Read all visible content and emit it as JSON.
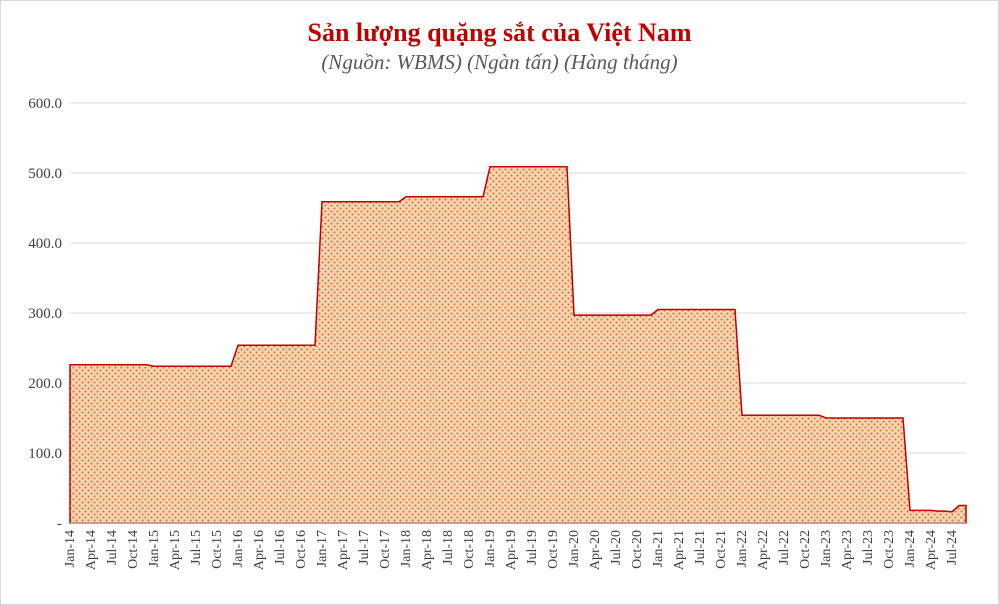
{
  "chart_data": {
    "type": "area",
    "title": "Sản lượng quặng sắt của Việt Nam",
    "subtitle": "(Nguồn: WBMS) (Ngàn tấn) (Hàng tháng)",
    "xlabel": "",
    "ylabel": "",
    "ylim": [
      0,
      600
    ],
    "yticks": [
      "-",
      "100.0",
      "200.0",
      "300.0",
      "400.0",
      "500.0",
      "600.0"
    ],
    "grid": true,
    "legend": "none",
    "colors": {
      "line": "#c00000",
      "fill": "#f6d7b8",
      "dots": "#e07a2f",
      "grid": "#d9d9d9",
      "title": "#c00000"
    },
    "x_labels": [
      "Jan-14",
      "Apr-14",
      "Jul-14",
      "Oct-14",
      "Jan-15",
      "Apr-15",
      "Jul-15",
      "Oct-15",
      "Jan-16",
      "Apr-16",
      "Jul-16",
      "Oct-16",
      "Jan-17",
      "Apr-17",
      "Jul-17",
      "Oct-17",
      "Jan-18",
      "Apr-18",
      "Jul-18",
      "Oct-18",
      "Jan-19",
      "Apr-19",
      "Jul-19",
      "Oct-19",
      "Jan-20",
      "Apr-20",
      "Jul-20",
      "Oct-20",
      "Jan-21",
      "Apr-21",
      "Jul-21",
      "Oct-21",
      "Jan-22",
      "Apr-22",
      "Jul-22",
      "Oct-22",
      "Jan-23",
      "Apr-23",
      "Jul-23",
      "Oct-23",
      "Jan-24",
      "Apr-24",
      "Jul-24"
    ],
    "series": [
      {
        "values": [
          226,
          226,
          226,
          226,
          226,
          226,
          226,
          226,
          226,
          226,
          226,
          226,
          224,
          224,
          224,
          224,
          224,
          224,
          224,
          224,
          224,
          224,
          224,
          224,
          254,
          254,
          254,
          254,
          254,
          254,
          254,
          254,
          254,
          254,
          254,
          254,
          459,
          459,
          459,
          459,
          459,
          459,
          459,
          459,
          459,
          459,
          459,
          459,
          466,
          466,
          466,
          466,
          466,
          466,
          466,
          466,
          466,
          466,
          466,
          466,
          509,
          509,
          509,
          509,
          509,
          509,
          509,
          509,
          509,
          509,
          509,
          509,
          297,
          297,
          297,
          297,
          297,
          297,
          297,
          297,
          297,
          297,
          297,
          297,
          305,
          305,
          305,
          305,
          305,
          305,
          305,
          305,
          305,
          305,
          305,
          305,
          154,
          154,
          154,
          154,
          154,
          154,
          154,
          154,
          154,
          154,
          154,
          154,
          150,
          150,
          150,
          150,
          150,
          150,
          150,
          150,
          150,
          150,
          150,
          150,
          18,
          18,
          18,
          18,
          17,
          17,
          16,
          25,
          25
        ]
      }
    ]
  }
}
